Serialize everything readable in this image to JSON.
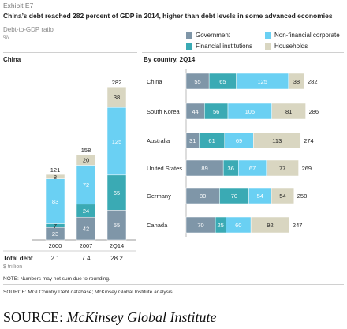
{
  "exhibit": "Exhibit E7",
  "title": "China’s debt reached 282 percent of GDP in 2014, higher than debt levels in some advanced economies",
  "metric": "Debt-to-GDP ratio",
  "metric_unit": "%",
  "colors": {
    "Government": "#7f96a8",
    "Financial institutions": "#3aaab4",
    "Non-financial corporate": "#6ad0f3",
    "Households": "#d9d6c1"
  },
  "chart_data": [
    {
      "type": "bar",
      "stacked": true,
      "orientation": "vertical",
      "title": "China",
      "categories": [
        "2000",
        "2007",
        "2Q14"
      ],
      "series": [
        {
          "name": "Government",
          "values": [
            23,
            42,
            55
          ]
        },
        {
          "name": "Financial institutions",
          "values": [
            7,
            24,
            65
          ]
        },
        {
          "name": "Non-financial corporate",
          "values": [
            83,
            72,
            125
          ]
        },
        {
          "name": "Households",
          "values": [
            8,
            20,
            38
          ]
        }
      ],
      "totals": [
        121,
        158,
        282
      ],
      "total_debt_label": "Total debt",
      "total_debt_unit": "$ trillion",
      "total_debt": [
        "2.1",
        "7.4",
        "28.2"
      ]
    },
    {
      "type": "bar",
      "stacked": true,
      "orientation": "horizontal",
      "title": "By country, 2Q14",
      "categories": [
        "China",
        "South Korea",
        "Australia",
        "United States",
        "Germany",
        "Canada"
      ],
      "series": [
        {
          "name": "Government",
          "values": [
            55,
            44,
            31,
            89,
            80,
            70
          ]
        },
        {
          "name": "Financial institutions",
          "values": [
            65,
            56,
            61,
            36,
            70,
            25
          ]
        },
        {
          "name": "Non-financial corporate",
          "values": [
            125,
            105,
            69,
            67,
            54,
            60
          ]
        },
        {
          "name": "Households",
          "values": [
            38,
            81,
            113,
            77,
            54,
            92
          ]
        }
      ],
      "totals": [
        282,
        286,
        274,
        269,
        258,
        247
      ]
    }
  ],
  "legend": [
    "Government",
    "Non-financial corporate",
    "Financial institutions",
    "Households"
  ],
  "note": "NOTE: Numbers may not sum due to rounding.",
  "source_small": "SOURCE:  MGI Country Debt database; McKinsey Global Institute analysis",
  "source_big_prefix": "SOURCE: ",
  "source_big_name": "McKinsey Global Institute"
}
